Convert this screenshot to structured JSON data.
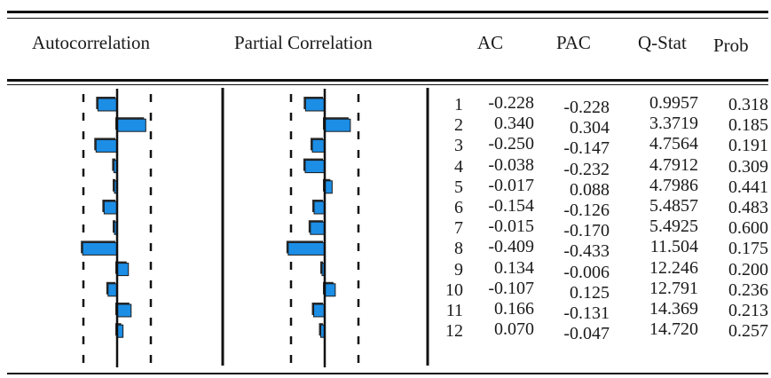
{
  "headers": {
    "ac_plot": "Autocorrelation",
    "pac_plot": "Partial Correlation",
    "ac": "AC",
    "pac": "PAC",
    "qstat": "Q-Stat",
    "prob": "Prob"
  },
  "chart_data": {
    "type": "table",
    "columns": [
      "",
      "AC",
      "PAC",
      "Q-Stat",
      "Prob"
    ],
    "rows": [
      {
        "lag": "1",
        "ac": "-0.228",
        "pac": "-0.228",
        "q": "0.9957",
        "prob": "0.318"
      },
      {
        "lag": "2",
        "ac": "0.340",
        "pac": "0.304",
        "q": "3.3719",
        "prob": "0.185"
      },
      {
        "lag": "3",
        "ac": "-0.250",
        "pac": "-0.147",
        "q": "4.7564",
        "prob": "0.191"
      },
      {
        "lag": "4",
        "ac": "-0.038",
        "pac": "-0.232",
        "q": "4.7912",
        "prob": "0.309"
      },
      {
        "lag": "5",
        "ac": "-0.017",
        "pac": "0.088",
        "q": "4.7986",
        "prob": "0.441"
      },
      {
        "lag": "6",
        "ac": "-0.154",
        "pac": "-0.126",
        "q": "5.4857",
        "prob": "0.483"
      },
      {
        "lag": "7",
        "ac": "-0.015",
        "pac": "-0.170",
        "q": "5.4925",
        "prob": "0.600"
      },
      {
        "lag": "8",
        "ac": "-0.409",
        "pac": "-0.433",
        "q": "11.504",
        "prob": "0.175"
      },
      {
        "lag": "9",
        "ac": "0.134",
        "pac": "-0.006",
        "q": "12.246",
        "prob": "0.200"
      },
      {
        "lag": "10",
        "ac": "-0.107",
        "pac": "0.125",
        "q": "12.791",
        "prob": "0.236"
      },
      {
        "lag": "11",
        "ac": "0.166",
        "pac": "-0.131",
        "q": "14.369",
        "prob": "0.213"
      },
      {
        "lag": "12",
        "ac": "0.070",
        "pac": "-0.047",
        "q": "14.720",
        "prob": "0.257"
      }
    ],
    "bar_plots": {
      "ac_values": [
        -0.228,
        0.34,
        -0.25,
        -0.038,
        -0.017,
        -0.154,
        -0.015,
        -0.409,
        0.134,
        -0.107,
        0.166,
        0.07
      ],
      "pac_values": [
        -0.228,
        0.304,
        -0.147,
        -0.232,
        0.088,
        -0.126,
        -0.17,
        -0.433,
        -0.006,
        0.125,
        -0.131,
        -0.047
      ],
      "confidence_bound": 0.4,
      "bar_color": "#1c8ee6",
      "shadow_color": "#2b2b2b"
    }
  }
}
